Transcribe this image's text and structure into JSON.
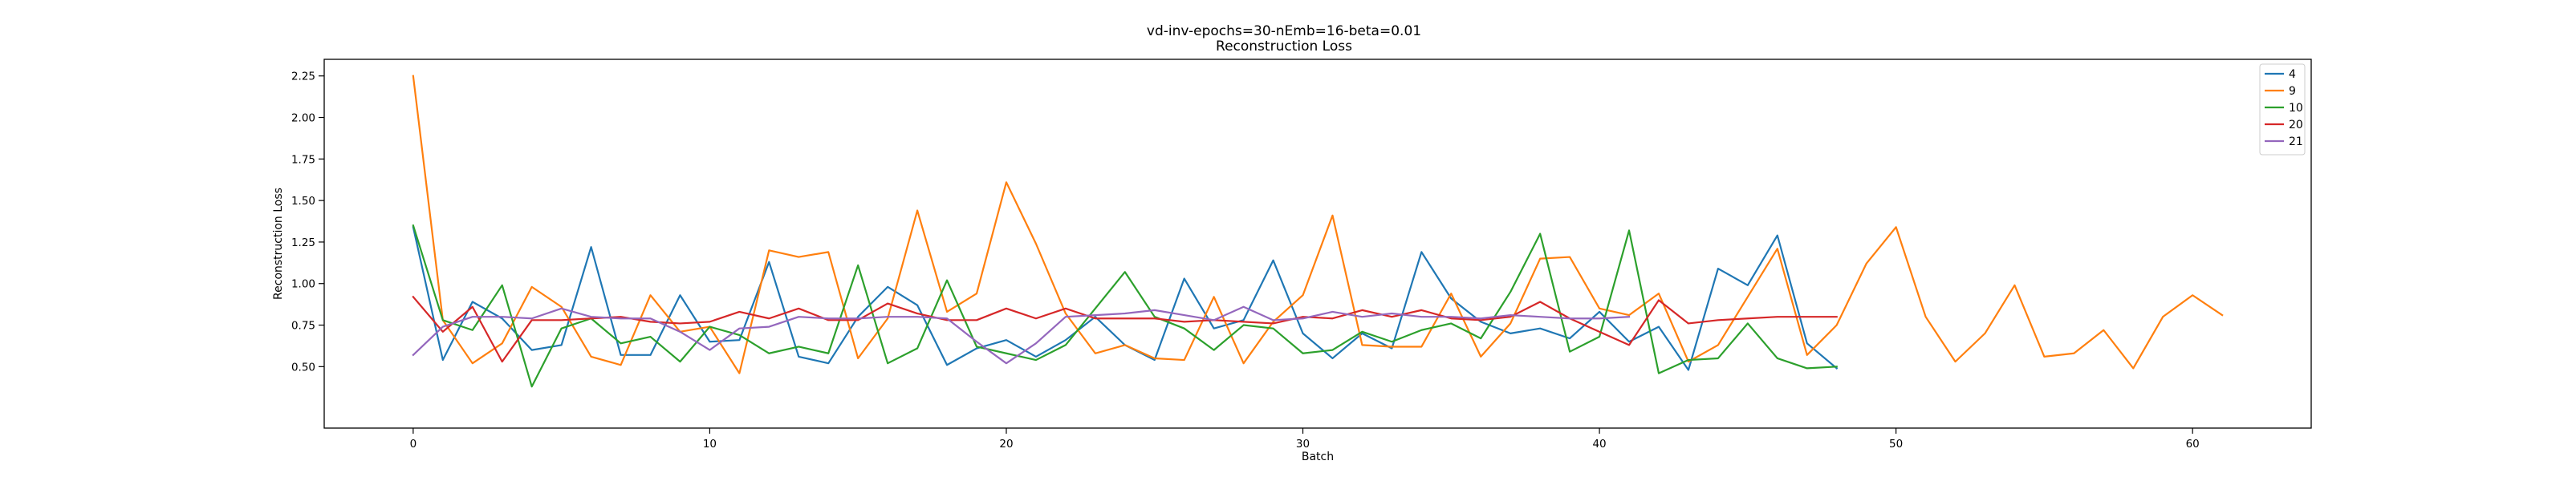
{
  "chart_data": {
    "type": "line",
    "title": "vd-inv-epochs=30-nEmb=16-beta=0.01",
    "subtitle": "Reconstruction Loss",
    "xlabel": "Batch",
    "ylabel": "Reconstruction Loss",
    "xlim": [
      -3,
      64
    ],
    "ylim": [
      0.13,
      2.35
    ],
    "xticks": [
      0,
      10,
      20,
      30,
      40,
      50,
      60
    ],
    "yticks": [
      0.5,
      0.75,
      1.0,
      1.25,
      1.5,
      1.75,
      2.0,
      2.25
    ],
    "xtick_labels": [
      "0",
      "10",
      "20",
      "30",
      "40",
      "50",
      "60"
    ],
    "ytick_labels": [
      "0.50",
      "0.75",
      "1.00",
      "1.25",
      "1.50",
      "1.75",
      "2.00",
      "2.25"
    ],
    "grid": false,
    "legend_position": "top-right",
    "series": [
      {
        "name": "4",
        "color": "#1f77b4",
        "values": [
          1.34,
          0.54,
          0.89,
          0.79,
          0.6,
          0.63,
          1.22,
          0.57,
          0.57,
          0.93,
          0.65,
          0.66,
          1.13,
          0.56,
          0.52,
          0.8,
          0.98,
          0.87,
          0.51,
          0.61,
          0.66,
          0.56,
          0.66,
          0.8,
          0.63,
          0.54,
          1.03,
          0.73,
          0.78,
          1.14,
          0.7,
          0.55,
          0.7,
          0.61,
          1.19,
          0.91,
          0.77,
          0.7,
          0.73,
          0.67,
          0.83,
          0.65,
          0.74,
          0.48,
          1.09,
          0.99,
          1.29,
          0.64,
          0.49
        ]
      },
      {
        "name": "9",
        "color": "#ff7f0e",
        "values": [
          2.25,
          0.78,
          0.52,
          0.64,
          0.98,
          0.86,
          0.56,
          0.51,
          0.93,
          0.71,
          0.74,
          0.46,
          1.2,
          1.16,
          1.19,
          0.55,
          0.79,
          1.44,
          0.83,
          0.94,
          1.61,
          1.24,
          0.82,
          0.58,
          0.63,
          0.55,
          0.54,
          0.92,
          0.52,
          0.77,
          0.93,
          1.41,
          0.63,
          0.62,
          0.62,
          0.94,
          0.56,
          0.76,
          1.15,
          1.16,
          0.85,
          0.81,
          0.94,
          0.53,
          0.63,
          0.92,
          1.21,
          0.57,
          0.75,
          1.12,
          1.34,
          0.8,
          0.53,
          0.7,
          0.99,
          0.56,
          0.58,
          0.72,
          0.49,
          0.8,
          0.93,
          0.81
        ]
      },
      {
        "name": "10",
        "color": "#2ca02c",
        "values": [
          1.35,
          0.78,
          0.72,
          0.99,
          0.38,
          0.73,
          0.79,
          0.64,
          0.68,
          0.53,
          0.74,
          0.69,
          0.58,
          0.62,
          0.58,
          1.11,
          0.52,
          0.61,
          1.02,
          0.62,
          0.58,
          0.54,
          0.63,
          0.85,
          1.07,
          0.8,
          0.73,
          0.6,
          0.75,
          0.73,
          0.58,
          0.6,
          0.71,
          0.65,
          0.72,
          0.76,
          0.67,
          0.95,
          1.3,
          0.59,
          0.68,
          1.32,
          0.46,
          0.54,
          0.55,
          0.76,
          0.55,
          0.49,
          0.5
        ]
      },
      {
        "name": "20",
        "color": "#d62728",
        "values": [
          0.92,
          0.71,
          0.86,
          0.53,
          0.78,
          0.78,
          0.79,
          0.8,
          0.77,
          0.76,
          0.77,
          0.83,
          0.79,
          0.85,
          0.78,
          0.78,
          0.88,
          0.82,
          0.78,
          0.78,
          0.85,
          0.79,
          0.85,
          0.79,
          0.79,
          0.79,
          0.77,
          0.78,
          0.77,
          0.76,
          0.8,
          0.79,
          0.84,
          0.8,
          0.84,
          0.79,
          0.78,
          0.8,
          0.89,
          0.79,
          0.71,
          0.63,
          0.9,
          0.76,
          0.78,
          0.79,
          0.8,
          0.8,
          0.8
        ]
      },
      {
        "name": "21",
        "color": "#9467bd",
        "values": [
          0.57,
          0.74,
          0.8,
          0.8,
          0.79,
          0.85,
          0.8,
          0.79,
          0.79,
          0.71,
          0.6,
          0.73,
          0.74,
          0.8,
          0.79,
          0.79,
          0.8,
          0.8,
          0.79,
          0.65,
          0.52,
          0.64,
          0.8,
          0.81,
          0.82,
          0.84,
          0.81,
          0.78,
          0.86,
          0.78,
          0.79,
          0.83,
          0.8,
          0.82,
          0.8,
          0.8,
          0.79,
          0.81,
          0.8,
          0.79,
          0.79,
          0.8
        ]
      }
    ]
  }
}
